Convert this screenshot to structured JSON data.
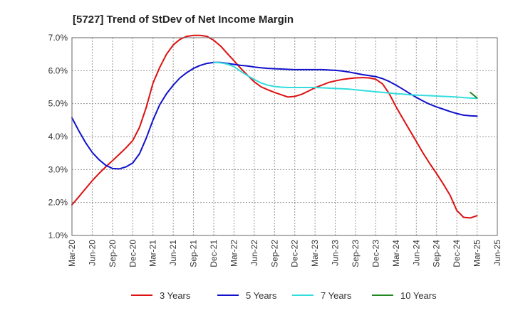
{
  "chart_data": {
    "type": "line",
    "title": "[5727]  Trend of StDev of Net Income Margin",
    "xlabel": "",
    "ylabel": "",
    "ylim": [
      1.0,
      7.0
    ],
    "yticks": [
      "1.0%",
      "2.0%",
      "3.0%",
      "4.0%",
      "5.0%",
      "6.0%",
      "7.0%"
    ],
    "xticks": [
      "Mar-20",
      "Jun-20",
      "Sep-20",
      "Dec-20",
      "Mar-21",
      "Jun-21",
      "Sep-21",
      "Dec-21",
      "Mar-22",
      "Jun-22",
      "Sep-22",
      "Dec-22",
      "Mar-23",
      "Jun-23",
      "Sep-23",
      "Dec-23",
      "Mar-24",
      "Jun-24",
      "Sep-24",
      "Dec-24",
      "Mar-25",
      "Jun-25"
    ],
    "grid": true,
    "legend_position": "bottom",
    "series": [
      {
        "name": "3 Years",
        "color": "#dd1111",
        "x": [
          "Mar-20",
          "Apr-20",
          "May-20",
          "Jun-20",
          "Jul-20",
          "Aug-20",
          "Sep-20",
          "Oct-20",
          "Nov-20",
          "Dec-20",
          "Jan-21",
          "Feb-21",
          "Mar-21",
          "Apr-21",
          "May-21",
          "Jun-21",
          "Jul-21",
          "Aug-21",
          "Sep-21",
          "Oct-21",
          "Nov-21",
          "Dec-21",
          "Jan-22",
          "Feb-22",
          "Mar-22",
          "Apr-22",
          "May-22",
          "Jun-22",
          "Jul-22",
          "Aug-22",
          "Sep-22",
          "Oct-22",
          "Nov-22",
          "Dec-22",
          "Jan-23",
          "Feb-23",
          "Mar-23",
          "Apr-23",
          "May-23",
          "Jun-23",
          "Jul-23",
          "Aug-23",
          "Sep-23",
          "Oct-23",
          "Nov-23",
          "Dec-23",
          "Jan-24",
          "Feb-24",
          "Mar-24",
          "Apr-24",
          "May-24",
          "Jun-24",
          "Jul-24",
          "Aug-24",
          "Sep-24",
          "Oct-24",
          "Nov-24",
          "Dec-24",
          "Jan-25",
          "Feb-25",
          "Mar-25"
        ],
        "values": [
          1.93,
          2.17,
          2.42,
          2.66,
          2.88,
          3.08,
          3.27,
          3.46,
          3.66,
          3.88,
          4.28,
          4.88,
          5.62,
          6.1,
          6.5,
          6.78,
          6.95,
          7.04,
          7.07,
          7.07,
          7.04,
          6.92,
          6.75,
          6.52,
          6.3,
          6.07,
          5.86,
          5.66,
          5.51,
          5.42,
          5.34,
          5.27,
          5.2,
          5.22,
          5.28,
          5.38,
          5.48,
          5.56,
          5.64,
          5.69,
          5.73,
          5.76,
          5.78,
          5.79,
          5.78,
          5.74,
          5.6,
          5.3,
          4.9,
          4.55,
          4.2,
          3.85,
          3.5,
          3.18,
          2.88,
          2.56,
          2.22,
          1.76,
          1.55,
          1.53,
          1.6
        ]
      },
      {
        "name": "5 Years",
        "color": "#1111cc",
        "x": [
          "Mar-20",
          "Apr-20",
          "May-20",
          "Jun-20",
          "Jul-20",
          "Aug-20",
          "Sep-20",
          "Oct-20",
          "Nov-20",
          "Dec-20",
          "Jan-21",
          "Feb-21",
          "Mar-21",
          "Apr-21",
          "May-21",
          "Jun-21",
          "Jul-21",
          "Aug-21",
          "Sep-21",
          "Oct-21",
          "Nov-21",
          "Dec-21",
          "Jan-22",
          "Feb-22",
          "Mar-22",
          "Apr-22",
          "May-22",
          "Jun-22",
          "Jul-22",
          "Aug-22",
          "Sep-22",
          "Oct-22",
          "Nov-22",
          "Dec-22",
          "Jan-23",
          "Feb-23",
          "Mar-23",
          "Apr-23",
          "May-23",
          "Jun-23",
          "Jul-23",
          "Aug-23",
          "Sep-23",
          "Oct-23",
          "Nov-23",
          "Dec-23",
          "Jan-24",
          "Feb-24",
          "Mar-24",
          "Apr-24",
          "May-24",
          "Jun-24",
          "Jul-24",
          "Aug-24",
          "Sep-24",
          "Oct-24",
          "Nov-24",
          "Dec-24",
          "Jan-25",
          "Feb-25",
          "Mar-25"
        ],
        "values": [
          4.57,
          4.18,
          3.82,
          3.52,
          3.3,
          3.13,
          3.03,
          3.02,
          3.08,
          3.2,
          3.48,
          3.95,
          4.5,
          4.97,
          5.3,
          5.56,
          5.78,
          5.94,
          6.07,
          6.16,
          6.22,
          6.25,
          6.25,
          6.22,
          6.19,
          6.16,
          6.14,
          6.11,
          6.09,
          6.07,
          6.06,
          6.05,
          6.04,
          6.03,
          6.03,
          6.03,
          6.03,
          6.03,
          6.02,
          6.01,
          5.99,
          5.96,
          5.92,
          5.88,
          5.85,
          5.82,
          5.76,
          5.67,
          5.56,
          5.44,
          5.31,
          5.19,
          5.08,
          4.98,
          4.9,
          4.83,
          4.76,
          4.7,
          4.65,
          4.63,
          4.62
        ]
      },
      {
        "name": "7 Years",
        "color": "#33dddd",
        "x": [
          "Dec-21",
          "Jan-22",
          "Feb-22",
          "Mar-22",
          "Apr-22",
          "May-22",
          "Jun-22",
          "Jul-22",
          "Aug-22",
          "Sep-22",
          "Oct-22",
          "Nov-22",
          "Dec-22",
          "Jan-23",
          "Feb-23",
          "Mar-23",
          "Apr-23",
          "May-23",
          "Jun-23",
          "Jul-23",
          "Aug-23",
          "Sep-23",
          "Oct-23",
          "Nov-23",
          "Dec-23",
          "Jan-24",
          "Feb-24",
          "Mar-24",
          "Apr-24",
          "May-24",
          "Jun-24",
          "Jul-24",
          "Aug-24",
          "Sep-24",
          "Oct-24",
          "Nov-24",
          "Dec-24",
          "Jan-25",
          "Feb-25",
          "Mar-25"
        ],
        "values": [
          6.25,
          6.24,
          6.2,
          6.12,
          5.98,
          5.85,
          5.73,
          5.63,
          5.56,
          5.52,
          5.5,
          5.49,
          5.49,
          5.49,
          5.49,
          5.49,
          5.48,
          5.47,
          5.46,
          5.45,
          5.44,
          5.42,
          5.4,
          5.38,
          5.36,
          5.34,
          5.32,
          5.3,
          5.29,
          5.27,
          5.26,
          5.25,
          5.24,
          5.23,
          5.22,
          5.21,
          5.2,
          5.18,
          5.17,
          5.16
        ]
      },
      {
        "name": "10 Years",
        "color": "#228822",
        "x": [
          "Feb-25",
          "Mar-25"
        ],
        "values": [
          5.34,
          5.17
        ]
      }
    ]
  }
}
